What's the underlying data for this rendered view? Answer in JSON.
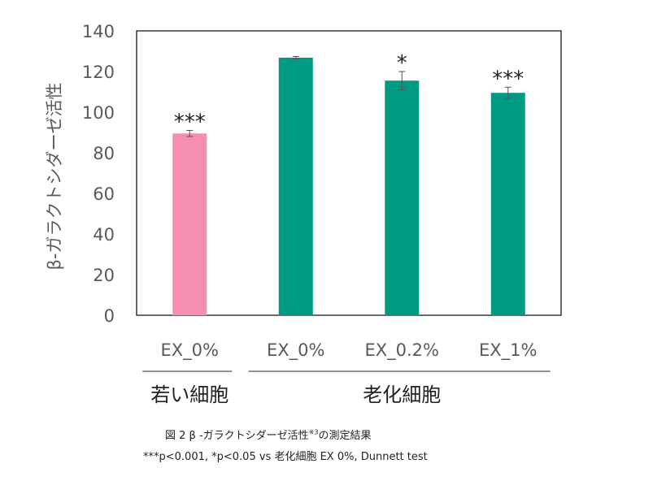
{
  "chart_data": {
    "type": "bar",
    "ylabel": "β-ガラクトシダーゼ活性",
    "ylim": [
      0,
      140
    ],
    "yticks": [
      0,
      20,
      40,
      60,
      80,
      100,
      120,
      140
    ],
    "grid": false,
    "categories": [
      "EX_0%",
      "EX_0%",
      "EX_0.2%",
      "EX_1%"
    ],
    "values": [
      89.5,
      126.8,
      115.5,
      109.5
    ],
    "errors": [
      1.5,
      0.6,
      4.5,
      2.8
    ],
    "bar_colors": [
      "#f48fb1",
      "#009982",
      "#009982",
      "#009982"
    ],
    "significance": [
      "***",
      "",
      "*",
      "***"
    ],
    "groups": [
      {
        "label": "若い細胞",
        "members": [
          0
        ]
      },
      {
        "label": "老化細胞",
        "members": [
          1,
          2,
          3
        ]
      }
    ]
  },
  "caption": {
    "title_main": "図 2 β -ガラクトシダーゼ活性",
    "title_sup": "※3",
    "title_end": "の測定結果",
    "note": "***p<0.001, *p<0.05 vs 老化細胞 EX 0%, Dunnett test"
  }
}
